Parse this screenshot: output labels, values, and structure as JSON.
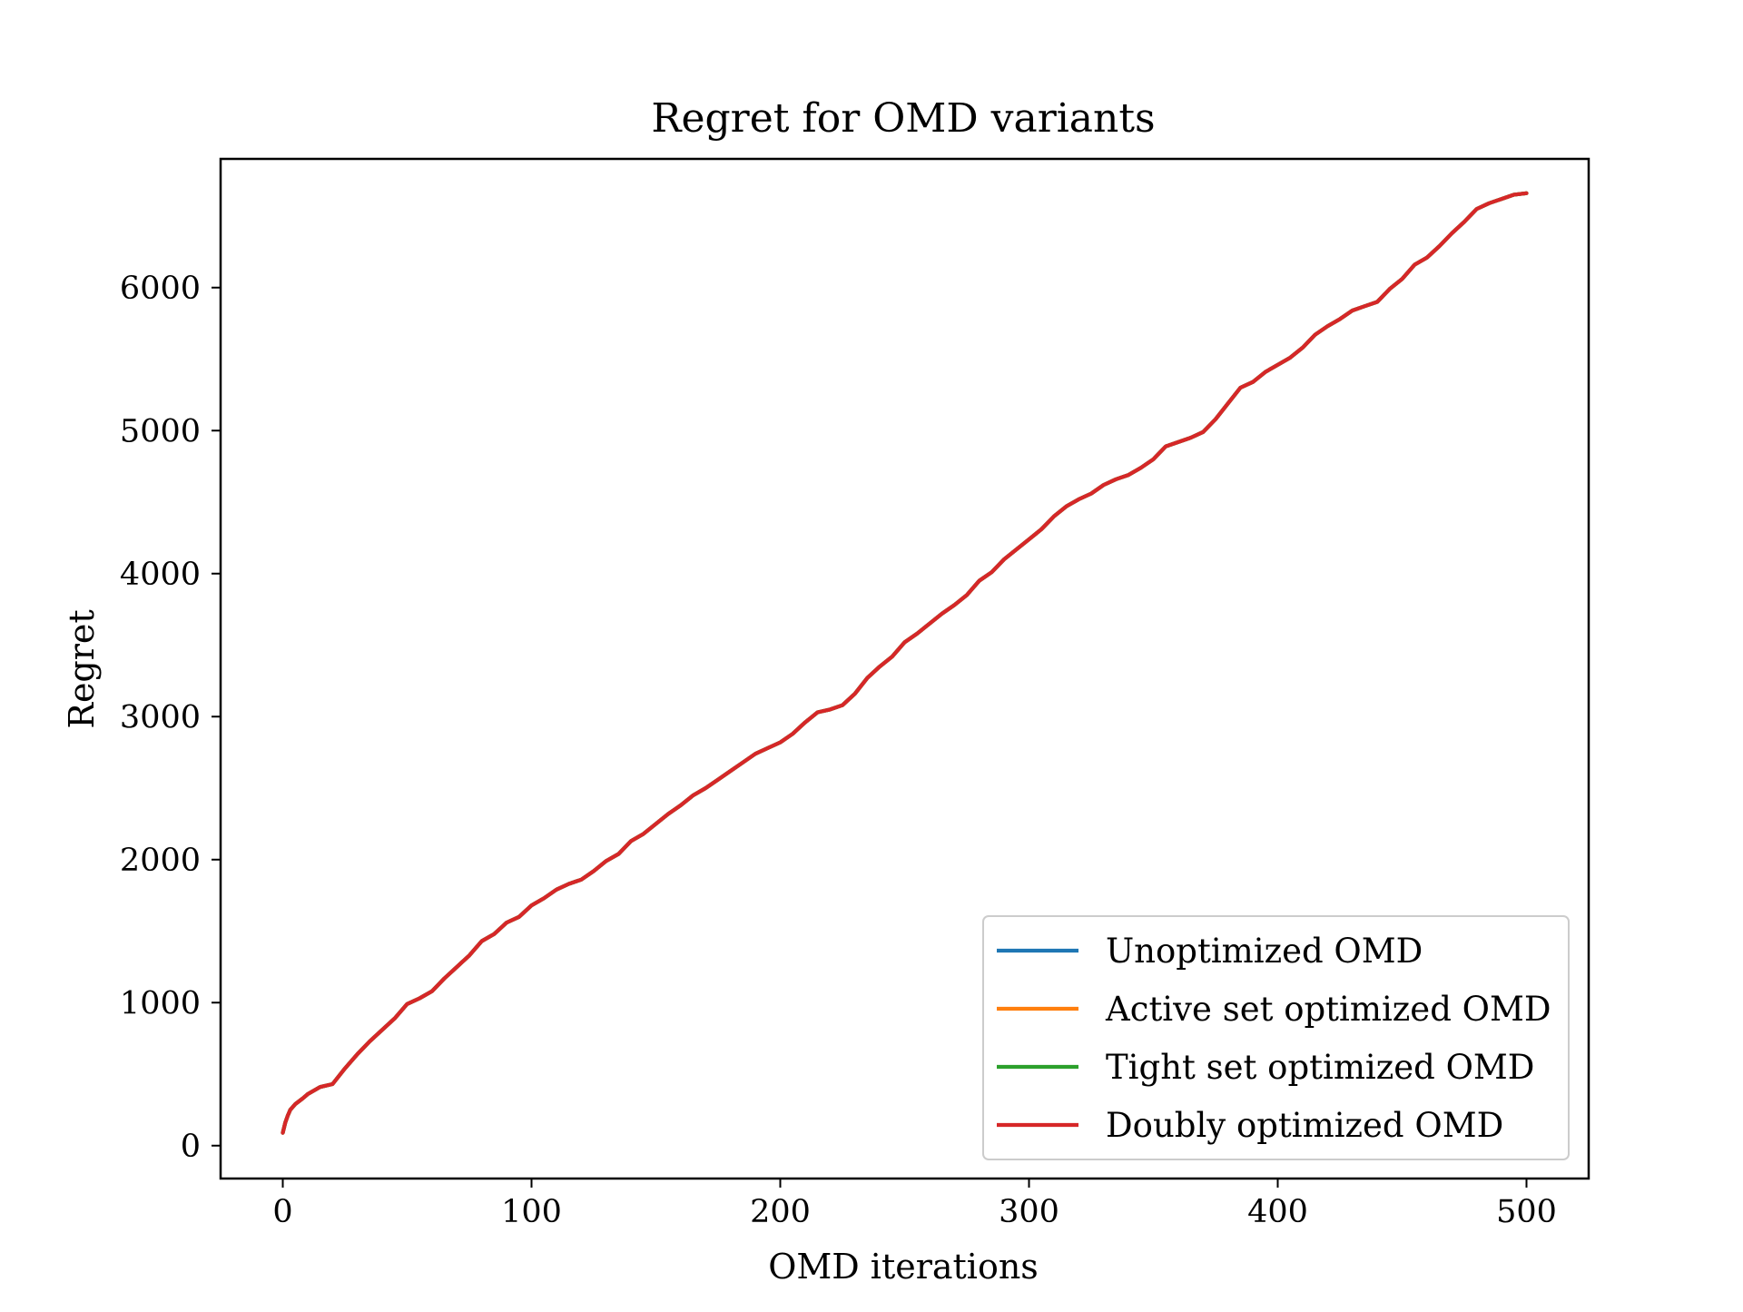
{
  "chart_data": {
    "type": "line",
    "title": "Regret for OMD variants",
    "xlabel": "OMD iterations",
    "ylabel": "Regret",
    "xlim": [
      -25,
      525
    ],
    "ylim": [
      -230,
      6900
    ],
    "xticks": [
      0,
      100,
      200,
      300,
      400,
      500
    ],
    "yticks": [
      0,
      1000,
      2000,
      3000,
      4000,
      5000,
      6000
    ],
    "grid": false,
    "legend_position": "lower-right",
    "x": [
      0,
      1,
      2,
      3,
      5,
      8,
      10,
      15,
      20,
      25,
      30,
      35,
      40,
      45,
      50,
      55,
      60,
      65,
      70,
      75,
      80,
      85,
      90,
      95,
      100,
      105,
      110,
      115,
      120,
      125,
      130,
      135,
      140,
      145,
      150,
      155,
      160,
      165,
      170,
      175,
      180,
      185,
      190,
      195,
      200,
      205,
      210,
      215,
      220,
      225,
      230,
      235,
      240,
      245,
      250,
      255,
      260,
      265,
      270,
      275,
      280,
      285,
      290,
      295,
      300,
      305,
      310,
      315,
      320,
      325,
      330,
      335,
      340,
      345,
      350,
      355,
      360,
      365,
      370,
      375,
      380,
      385,
      390,
      395,
      400,
      405,
      410,
      415,
      420,
      425,
      430,
      435,
      440,
      445,
      450,
      455,
      460,
      465,
      470,
      475,
      480,
      485,
      490,
      495,
      500
    ],
    "series": [
      {
        "name": "Unoptimized OMD",
        "color": "#1f77b4",
        "values": [
          90,
          160,
          210,
          250,
          290,
          330,
          360,
          410,
          430,
          540,
          640,
          730,
          810,
          890,
          990,
          1030,
          1080,
          1170,
          1250,
          1330,
          1430,
          1480,
          1560,
          1600,
          1680,
          1730,
          1790,
          1830,
          1860,
          1920,
          1990,
          2040,
          2130,
          2180,
          2250,
          2320,
          2380,
          2450,
          2500,
          2560,
          2620,
          2680,
          2740,
          2780,
          2820,
          2880,
          2960,
          3030,
          3050,
          3080,
          3160,
          3270,
          3350,
          3420,
          3520,
          3580,
          3650,
          3720,
          3780,
          3850,
          3950,
          4010,
          4100,
          4170,
          4240,
          4310,
          4400,
          4470,
          4520,
          4560,
          4620,
          4660,
          4690,
          4740,
          4800,
          4890,
          4920,
          4950,
          4990,
          5080,
          5190,
          5300,
          5340,
          5410,
          5460,
          5510,
          5580,
          5670,
          5730,
          5780,
          5840,
          5870,
          5900,
          5990,
          6060,
          6160,
          6210,
          6290,
          6380,
          6460,
          6550,
          6590,
          6620,
          6650,
          6660
        ]
      },
      {
        "name": "Active set optimized OMD",
        "color": "#ff7f0e",
        "values": [
          90,
          160,
          210,
          250,
          290,
          330,
          360,
          410,
          430,
          540,
          640,
          730,
          810,
          890,
          990,
          1030,
          1080,
          1170,
          1250,
          1330,
          1430,
          1480,
          1560,
          1600,
          1680,
          1730,
          1790,
          1830,
          1860,
          1920,
          1990,
          2040,
          2130,
          2180,
          2250,
          2320,
          2380,
          2450,
          2500,
          2560,
          2620,
          2680,
          2740,
          2780,
          2820,
          2880,
          2960,
          3030,
          3050,
          3080,
          3160,
          3270,
          3350,
          3420,
          3520,
          3580,
          3650,
          3720,
          3780,
          3850,
          3950,
          4010,
          4100,
          4170,
          4240,
          4310,
          4400,
          4470,
          4520,
          4560,
          4620,
          4660,
          4690,
          4740,
          4800,
          4890,
          4920,
          4950,
          4990,
          5080,
          5190,
          5300,
          5340,
          5410,
          5460,
          5510,
          5580,
          5670,
          5730,
          5780,
          5840,
          5870,
          5900,
          5990,
          6060,
          6160,
          6210,
          6290,
          6380,
          6460,
          6550,
          6590,
          6620,
          6650,
          6660
        ]
      },
      {
        "name": "Tight set optimized OMD",
        "color": "#2ca02c",
        "values": [
          90,
          160,
          210,
          250,
          290,
          330,
          360,
          410,
          430,
          540,
          640,
          730,
          810,
          890,
          990,
          1030,
          1080,
          1170,
          1250,
          1330,
          1430,
          1480,
          1560,
          1600,
          1680,
          1730,
          1790,
          1830,
          1860,
          1920,
          1990,
          2040,
          2130,
          2180,
          2250,
          2320,
          2380,
          2450,
          2500,
          2560,
          2620,
          2680,
          2740,
          2780,
          2820,
          2880,
          2960,
          3030,
          3050,
          3080,
          3160,
          3270,
          3350,
          3420,
          3520,
          3580,
          3650,
          3720,
          3780,
          3850,
          3950,
          4010,
          4100,
          4170,
          4240,
          4310,
          4400,
          4470,
          4520,
          4560,
          4620,
          4660,
          4690,
          4740,
          4800,
          4890,
          4920,
          4950,
          4990,
          5080,
          5190,
          5300,
          5340,
          5410,
          5460,
          5510,
          5580,
          5670,
          5730,
          5780,
          5840,
          5870,
          5900,
          5990,
          6060,
          6160,
          6210,
          6290,
          6380,
          6460,
          6550,
          6590,
          6620,
          6650,
          6660
        ]
      },
      {
        "name": "Doubly optimized OMD",
        "color": "#d62728",
        "values": [
          90,
          160,
          210,
          250,
          290,
          330,
          360,
          410,
          430,
          540,
          640,
          730,
          810,
          890,
          990,
          1030,
          1080,
          1170,
          1250,
          1330,
          1430,
          1480,
          1560,
          1600,
          1680,
          1730,
          1790,
          1830,
          1860,
          1920,
          1990,
          2040,
          2130,
          2180,
          2250,
          2320,
          2380,
          2450,
          2500,
          2560,
          2620,
          2680,
          2740,
          2780,
          2820,
          2880,
          2960,
          3030,
          3050,
          3080,
          3160,
          3270,
          3350,
          3420,
          3520,
          3580,
          3650,
          3720,
          3780,
          3850,
          3950,
          4010,
          4100,
          4170,
          4240,
          4310,
          4400,
          4470,
          4520,
          4560,
          4620,
          4660,
          4690,
          4740,
          4800,
          4890,
          4920,
          4950,
          4990,
          5080,
          5190,
          5300,
          5340,
          5410,
          5460,
          5510,
          5580,
          5670,
          5730,
          5780,
          5840,
          5870,
          5900,
          5990,
          6060,
          6160,
          6210,
          6290,
          6380,
          6460,
          6550,
          6590,
          6620,
          6650,
          6660
        ]
      }
    ]
  }
}
